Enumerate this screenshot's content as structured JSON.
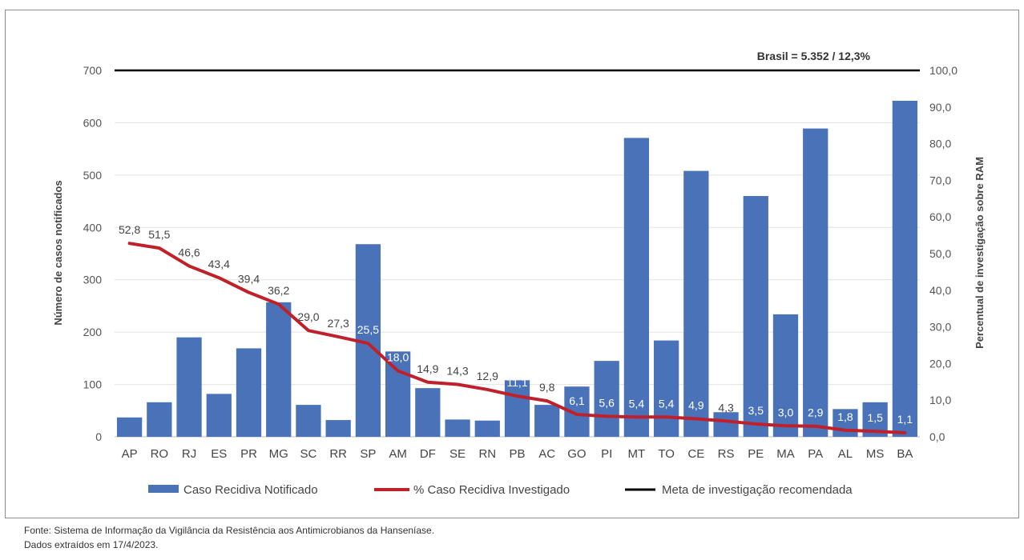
{
  "chart_data": {
    "type": "bar",
    "categories": [
      "AP",
      "RO",
      "RJ",
      "ES",
      "PR",
      "MG",
      "SC",
      "RR",
      "SP",
      "AM",
      "DF",
      "SE",
      "RN",
      "PB",
      "AC",
      "GO",
      "PI",
      "MT",
      "TO",
      "CE",
      "RS",
      "PE",
      "MA",
      "PA",
      "AL",
      "MS",
      "BA"
    ],
    "series": [
      {
        "name": "Caso Recidiva Notificado",
        "type": "bar",
        "axis": "left",
        "color": "#4a72b8",
        "values": [
          37,
          66,
          190,
          82,
          169,
          257,
          61,
          32,
          368,
          163,
          93,
          33,
          31,
          108,
          61,
          96,
          145,
          571,
          184,
          508,
          47,
          460,
          234,
          589,
          53,
          66,
          642
        ]
      },
      {
        "name": "% Caso Recidiva Investigado",
        "type": "line",
        "axis": "right",
        "color": "#c0202a",
        "values": [
          52.8,
          51.5,
          46.6,
          43.4,
          39.4,
          36.2,
          29.0,
          27.3,
          25.5,
          18.0,
          14.9,
          14.3,
          12.9,
          11.1,
          9.8,
          6.1,
          5.6,
          5.4,
          5.4,
          4.9,
          4.3,
          3.5,
          3.0,
          2.9,
          1.8,
          1.5,
          1.1
        ],
        "labels": [
          "52,8",
          "51,5",
          "46,6",
          "43,4",
          "39,4",
          "36,2",
          "29,0",
          "27,3",
          "25,5",
          "18,0",
          "14,9",
          "14,3",
          "12,9",
          "11,1",
          "9,8",
          "6,1",
          "5,6",
          "5,4",
          "5,4",
          "4,9",
          "4,3",
          "3,5",
          "3,0",
          "2,9",
          "1,8",
          "1,5",
          "1,1"
        ]
      },
      {
        "name": "Meta de investigação recomendada",
        "type": "line",
        "axis": "right",
        "color": "#000000",
        "values": [
          100,
          100,
          100,
          100,
          100,
          100,
          100,
          100,
          100,
          100,
          100,
          100,
          100,
          100,
          100,
          100,
          100,
          100,
          100,
          100,
          100,
          100,
          100,
          100,
          100,
          100,
          100
        ]
      }
    ],
    "y_left": {
      "label": "Número de casos notificados",
      "ticks": [
        "0",
        "100",
        "200",
        "300",
        "400",
        "500",
        "600",
        "700"
      ],
      "range": [
        0,
        700
      ]
    },
    "y_right": {
      "label": "Percentual de investigação sobre RAM",
      "ticks": [
        "0,0",
        "10,0",
        "20,0",
        "30,0",
        "40,0",
        "50,0",
        "60,0",
        "70,0",
        "80,0",
        "90,0",
        "100,0"
      ],
      "range": [
        0,
        100
      ]
    },
    "annotation": "Brasil = 5.352 / 12,3%",
    "grid": true,
    "legend": "bottom"
  },
  "legend": {
    "bars": "Caso Recidiva Notificado",
    "pct": "% Caso Recidiva Investigado",
    "goal": "Meta de investigação recomendada"
  },
  "source": {
    "line1": "Fonte: Sistema de Informação da Vigilância da Resistência aos Antimicrobianos da Hanseníase.",
    "line2": "Dados extraídos em 17/4/2023."
  }
}
